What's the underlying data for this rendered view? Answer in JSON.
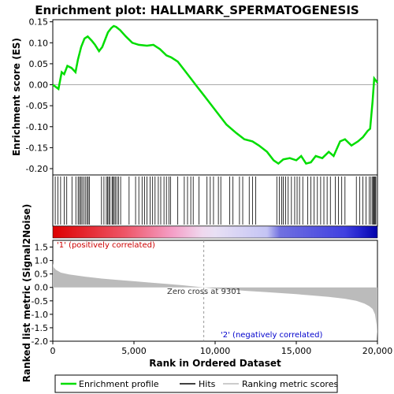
{
  "title": "Enrichment plot: HALLMARK_SPERMATOGENESIS",
  "chart_data": [
    {
      "type": "line",
      "name": "enrichment-profile",
      "ylabel": "Enrichment score (ES)",
      "xlim": [
        0,
        20000
      ],
      "ylim": [
        -0.215,
        0.155
      ],
      "yticks": [
        0.15,
        0.1,
        0.05,
        0.0,
        -0.05,
        -0.1,
        -0.15,
        -0.2
      ],
      "ytick_labels": [
        "0.15",
        "0.10",
        "0.05",
        "0.00",
        "-0.05",
        "-0.10",
        "-0.15",
        "-0.20"
      ],
      "zero_line": true,
      "color": "#00dd00",
      "x": [
        0,
        350,
        550,
        700,
        900,
        1150,
        1400,
        1550,
        1750,
        1950,
        2150,
        2400,
        2600,
        2850,
        3050,
        3250,
        3400,
        3600,
        3750,
        3900,
        4150,
        4500,
        4900,
        5300,
        5800,
        6200,
        6600,
        7000,
        7300,
        7700,
        8100,
        8500,
        8900,
        9301,
        10000,
        10700,
        11300,
        11800,
        12300,
        12700,
        13200,
        13600,
        13900,
        14200,
        14600,
        15000,
        15300,
        15600,
        15900,
        16200,
        16600,
        17000,
        17300,
        17700,
        18000,
        18400,
        18800,
        19100,
        19400,
        19550,
        19700,
        19800,
        20000
      ],
      "y": [
        0.0,
        -0.01,
        0.03,
        0.025,
        0.045,
        0.04,
        0.03,
        0.06,
        0.09,
        0.11,
        0.115,
        0.105,
        0.095,
        0.08,
        0.09,
        0.11,
        0.125,
        0.135,
        0.14,
        0.138,
        0.13,
        0.115,
        0.1,
        0.095,
        0.093,
        0.095,
        0.085,
        0.07,
        0.065,
        0.055,
        0.035,
        0.015,
        -0.005,
        -0.025,
        -0.06,
        -0.095,
        -0.115,
        -0.13,
        -0.135,
        -0.145,
        -0.16,
        -0.18,
        -0.188,
        -0.178,
        -0.175,
        -0.18,
        -0.17,
        -0.188,
        -0.185,
        -0.17,
        -0.175,
        -0.16,
        -0.17,
        -0.135,
        -0.13,
        -0.145,
        -0.135,
        -0.125,
        -0.11,
        -0.105,
        -0.04,
        0.015,
        0.005
      ]
    },
    {
      "type": "bar",
      "name": "hits",
      "x": [
        150,
        320,
        480,
        700,
        860,
        1180,
        1420,
        1560,
        1640,
        1720,
        1800,
        1900,
        2000,
        2100,
        2180,
        2250,
        3000,
        3150,
        3300,
        3380,
        3450,
        3520,
        3650,
        3700,
        3780,
        3850,
        3950,
        4050,
        4180,
        4700,
        5100,
        5300,
        5500,
        5650,
        5800,
        6000,
        6150,
        6300,
        6500,
        6650,
        6850,
        7000,
        7150,
        7250,
        7700,
        8100,
        8300,
        8500,
        8650,
        9000,
        9500,
        9700,
        9900,
        10200,
        10350,
        10900,
        11100,
        11500,
        11700,
        12100,
        12300,
        12500,
        13800,
        13950,
        14100,
        14200,
        14350,
        14500,
        14700,
        14900,
        15050,
        15200,
        15400,
        15700,
        15900,
        16100,
        16300,
        16500,
        16700,
        16900,
        17100,
        17400,
        17600,
        17800,
        18000,
        18700,
        18900,
        19100,
        19300,
        19500,
        19600,
        19700,
        19750,
        19800,
        19850,
        19900
      ]
    },
    {
      "type": "area",
      "name": "ranked-list-metric",
      "ylabel": "Ranked list metric (Signal2Noise)",
      "xlabel": "Rank in Ordered Dataset",
      "xlim": [
        0,
        20000
      ],
      "ylim": [
        -2.0,
        1.75
      ],
      "yticks": [
        1.5,
        1.0,
        0.5,
        0.0,
        -0.5,
        -1.0,
        -1.5,
        -2.0
      ],
      "ytick_labels": [
        "1.5",
        "1.0",
        "0.5",
        "0.0",
        "-0.5",
        "-1.0",
        "-1.5",
        "-2.0"
      ],
      "xticks": [
        0,
        5000,
        10000,
        15000,
        20000
      ],
      "xtick_labels": [
        "0",
        "5,000",
        "10,000",
        "15,000",
        "20,000"
      ],
      "x": [
        0,
        50,
        200,
        500,
        1000,
        2000,
        3000,
        4000,
        5000,
        6000,
        7000,
        8000,
        9301,
        10000,
        11000,
        12000,
        13000,
        14000,
        15000,
        16000,
        17000,
        18000,
        18700,
        19200,
        19500,
        19700,
        19850,
        19950,
        20000
      ],
      "y": [
        0.9,
        0.75,
        0.65,
        0.55,
        0.48,
        0.4,
        0.33,
        0.28,
        0.23,
        0.18,
        0.13,
        0.08,
        0.0,
        -0.05,
        -0.09,
        -0.13,
        -0.17,
        -0.21,
        -0.25,
        -0.3,
        -0.35,
        -0.42,
        -0.5,
        -0.6,
        -0.7,
        -0.8,
        -1.0,
        -1.4,
        -1.9
      ],
      "annotations": {
        "positive": "'1' (positively correlated)",
        "negative": "'2' (negatively correlated)",
        "zero_cross": "Zero cross at 9301"
      }
    }
  ],
  "legend": [
    {
      "label": "Enrichment profile",
      "color": "#00dd00",
      "icon": "green-line"
    },
    {
      "label": "Hits",
      "color": "#000000",
      "icon": "black-line"
    },
    {
      "label": "Ranking metric scores",
      "color": "#bbbbbb",
      "icon": "grey-line"
    }
  ],
  "colors": {
    "profile": "#00dd00",
    "hits": "#000000",
    "metric_fill": "#bbbbbb",
    "positive_label": "#cc0000",
    "negative_label": "#0000cc",
    "zero_cross_text": "#333333"
  }
}
